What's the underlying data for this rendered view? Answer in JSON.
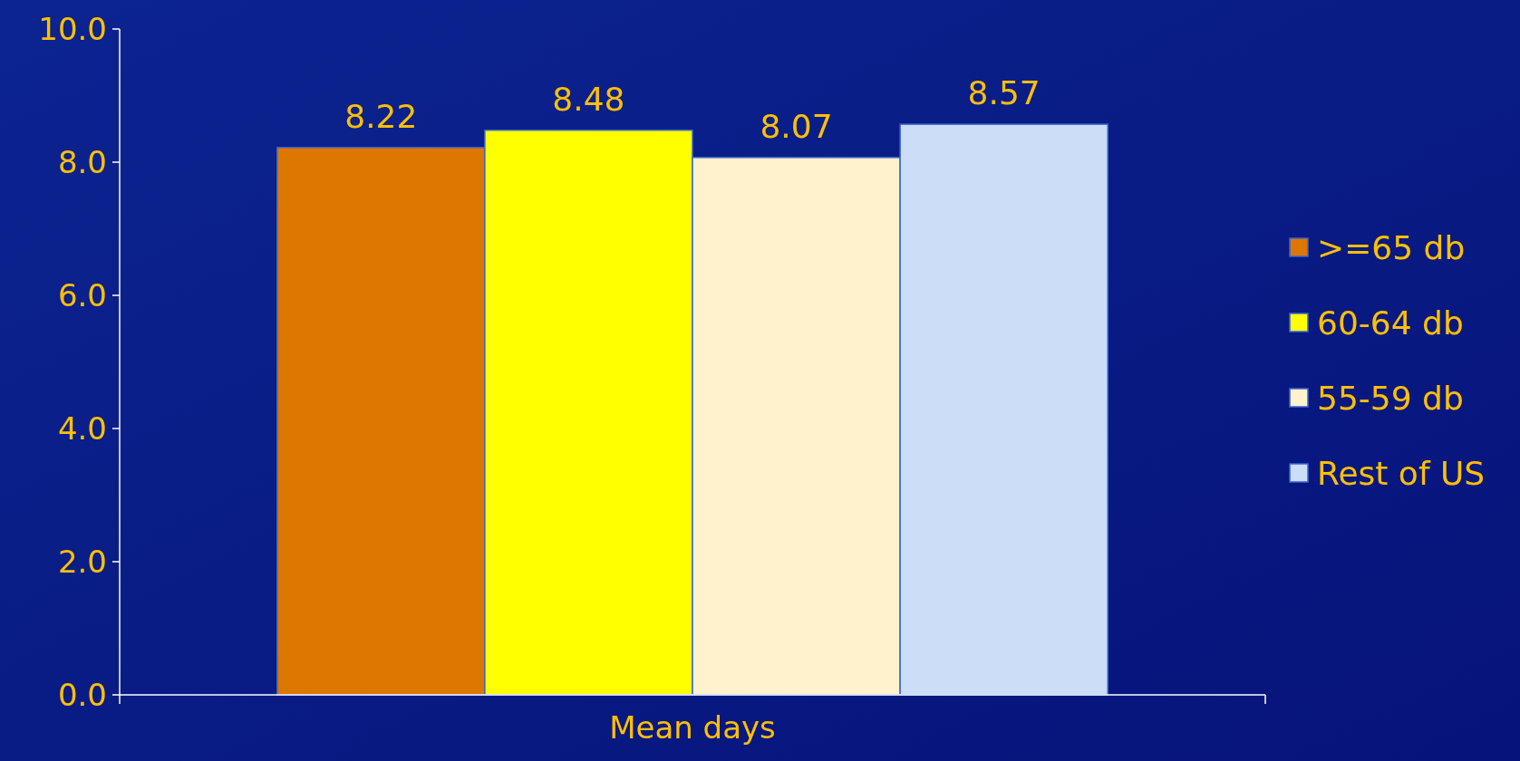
{
  "chart_data": {
    "type": "bar",
    "categories": [
      "Mean days"
    ],
    "series": [
      {
        "name": ">=65 db",
        "color": "#dd7700",
        "values": [
          8.22
        ]
      },
      {
        "name": "60-64 db",
        "color": "#ffff00",
        "values": [
          8.48
        ]
      },
      {
        "name": "55-59 db",
        "color": "#fff2cc",
        "values": [
          8.07
        ]
      },
      {
        "name": "Rest of US",
        "color": "#ccddf8",
        "values": [
          8.57
        ]
      }
    ],
    "ylim": [
      0,
      10
    ],
    "yticks": [
      {
        "value": 0,
        "label": "0.0"
      },
      {
        "value": 2,
        "label": "2.0"
      },
      {
        "value": 4,
        "label": "4.0"
      },
      {
        "value": 6,
        "label": "6.0"
      },
      {
        "value": 8,
        "label": "8.0"
      },
      {
        "value": 10,
        "label": "10.0"
      }
    ],
    "data_labels": true,
    "legend": "right",
    "grid": false
  }
}
